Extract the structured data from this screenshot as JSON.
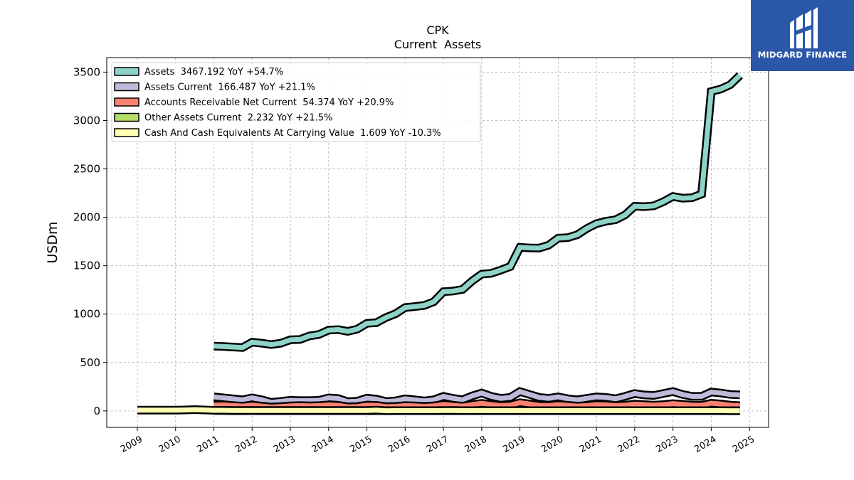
{
  "brand": {
    "name": "MIDGARD FINANCE",
    "bg": "#2a57a8"
  },
  "chart_data": {
    "type": "area",
    "title": "CPK",
    "subtitle": "Current  Assets",
    "xlabel": "",
    "ylabel": "USDm",
    "xlim": [
      2008.2,
      2025.5
    ],
    "ylim": [
      -170,
      3650
    ],
    "yticks": [
      0,
      500,
      1000,
      1500,
      2000,
      2500,
      3000,
      3500
    ],
    "xticks": [
      2009,
      2010,
      2011,
      2012,
      2013,
      2014,
      2015,
      2016,
      2017,
      2018,
      2019,
      2020,
      2021,
      2022,
      2023,
      2024,
      2025
    ],
    "grid": true,
    "legend_position": "top-left",
    "series": [
      {
        "name": "Assets  3467.192 YoY +54.7%",
        "color": "#8dd3c7",
        "points": [
          [
            2011.0,
            670
          ],
          [
            2011.25,
            665
          ],
          [
            2011.5,
            660
          ],
          [
            2011.75,
            655
          ],
          [
            2012.0,
            710
          ],
          [
            2012.25,
            700
          ],
          [
            2012.5,
            685
          ],
          [
            2012.75,
            700
          ],
          [
            2013.0,
            735
          ],
          [
            2013.25,
            738
          ],
          [
            2013.5,
            775
          ],
          [
            2013.75,
            790
          ],
          [
            2014.0,
            835
          ],
          [
            2014.25,
            840
          ],
          [
            2014.5,
            822
          ],
          [
            2014.75,
            845
          ],
          [
            2015.0,
            905
          ],
          [
            2015.25,
            912
          ],
          [
            2015.5,
            965
          ],
          [
            2015.75,
            1005
          ],
          [
            2016.0,
            1068
          ],
          [
            2016.25,
            1078
          ],
          [
            2016.5,
            1090
          ],
          [
            2016.75,
            1128
          ],
          [
            2017.0,
            1232
          ],
          [
            2017.25,
            1238
          ],
          [
            2017.5,
            1255
          ],
          [
            2017.75,
            1342
          ],
          [
            2018.0,
            1413
          ],
          [
            2018.25,
            1422
          ],
          [
            2018.5,
            1455
          ],
          [
            2018.75,
            1492
          ],
          [
            2019.0,
            1690
          ],
          [
            2019.25,
            1684
          ],
          [
            2019.5,
            1682
          ],
          [
            2019.75,
            1712
          ],
          [
            2020.0,
            1785
          ],
          [
            2020.25,
            1790
          ],
          [
            2020.5,
            1820
          ],
          [
            2020.75,
            1885
          ],
          [
            2021.0,
            1935
          ],
          [
            2021.25,
            1960
          ],
          [
            2021.5,
            1975
          ],
          [
            2021.75,
            2025
          ],
          [
            2022.0,
            2115
          ],
          [
            2022.25,
            2110
          ],
          [
            2022.5,
            2118
          ],
          [
            2022.75,
            2162
          ],
          [
            2023.0,
            2215
          ],
          [
            2023.25,
            2198
          ],
          [
            2023.5,
            2203
          ],
          [
            2023.75,
            2240
          ],
          [
            2024.0,
            3300
          ],
          [
            2024.25,
            3325
          ],
          [
            2024.5,
            3370
          ],
          [
            2024.75,
            3467
          ]
        ]
      },
      {
        "name": "Assets Current  166.487 YoY +21.1%",
        "color": "#bebada",
        "points": [
          [
            2011.0,
            145
          ],
          [
            2011.25,
            135
          ],
          [
            2011.5,
            125
          ],
          [
            2011.75,
            115
          ],
          [
            2012.0,
            135
          ],
          [
            2012.25,
            115
          ],
          [
            2012.5,
            88
          ],
          [
            2012.75,
            98
          ],
          [
            2013.0,
            110
          ],
          [
            2013.25,
            106
          ],
          [
            2013.5,
            106
          ],
          [
            2013.75,
            110
          ],
          [
            2014.0,
            135
          ],
          [
            2014.25,
            128
          ],
          [
            2014.5,
            95
          ],
          [
            2014.75,
            100
          ],
          [
            2015.0,
            132
          ],
          [
            2015.25,
            122
          ],
          [
            2015.5,
            97
          ],
          [
            2015.75,
            104
          ],
          [
            2016.0,
            125
          ],
          [
            2016.25,
            115
          ],
          [
            2016.5,
            103
          ],
          [
            2016.75,
            115
          ],
          [
            2017.0,
            150
          ],
          [
            2017.25,
            130
          ],
          [
            2017.5,
            115
          ],
          [
            2017.75,
            155
          ],
          [
            2018.0,
            185
          ],
          [
            2018.25,
            150
          ],
          [
            2018.5,
            130
          ],
          [
            2018.75,
            140
          ],
          [
            2019.0,
            200
          ],
          [
            2019.25,
            170
          ],
          [
            2019.5,
            140
          ],
          [
            2019.75,
            130
          ],
          [
            2020.0,
            145
          ],
          [
            2020.25,
            125
          ],
          [
            2020.5,
            115
          ],
          [
            2020.75,
            130
          ],
          [
            2021.0,
            145
          ],
          [
            2021.25,
            140
          ],
          [
            2021.5,
            125
          ],
          [
            2021.75,
            150
          ],
          [
            2022.0,
            180
          ],
          [
            2022.25,
            165
          ],
          [
            2022.5,
            160
          ],
          [
            2022.75,
            180
          ],
          [
            2023.0,
            200
          ],
          [
            2023.25,
            170
          ],
          [
            2023.5,
            150
          ],
          [
            2023.75,
            150
          ],
          [
            2024.0,
            195
          ],
          [
            2024.25,
            185
          ],
          [
            2024.5,
            170
          ],
          [
            2024.75,
            166
          ]
        ]
      },
      {
        "name": "Accounts Receivable Net Current  54.374 YoY +20.9%",
        "color": "#fb8072",
        "points": [
          [
            2011.0,
            60
          ],
          [
            2011.25,
            62
          ],
          [
            2011.5,
            55
          ],
          [
            2011.75,
            50
          ],
          [
            2012.0,
            60
          ],
          [
            2012.25,
            50
          ],
          [
            2012.5,
            40
          ],
          [
            2012.75,
            45
          ],
          [
            2013.0,
            52
          ],
          [
            2013.25,
            55
          ],
          [
            2013.5,
            52
          ],
          [
            2013.75,
            55
          ],
          [
            2014.0,
            62
          ],
          [
            2014.25,
            58
          ],
          [
            2014.5,
            42
          ],
          [
            2014.75,
            45
          ],
          [
            2015.0,
            60
          ],
          [
            2015.25,
            58
          ],
          [
            2015.5,
            44
          ],
          [
            2015.75,
            47
          ],
          [
            2016.0,
            55
          ],
          [
            2016.25,
            52
          ],
          [
            2016.5,
            47
          ],
          [
            2016.75,
            52
          ],
          [
            2017.0,
            68
          ],
          [
            2017.25,
            58
          ],
          [
            2017.5,
            50
          ],
          [
            2017.75,
            65
          ],
          [
            2018.0,
            78
          ],
          [
            2018.25,
            65
          ],
          [
            2018.5,
            55
          ],
          [
            2018.75,
            60
          ],
          [
            2019.0,
            85
          ],
          [
            2019.25,
            72
          ],
          [
            2019.5,
            58
          ],
          [
            2019.75,
            55
          ],
          [
            2020.0,
            65
          ],
          [
            2020.25,
            58
          ],
          [
            2020.5,
            50
          ],
          [
            2020.75,
            55
          ],
          [
            2021.0,
            65
          ],
          [
            2021.25,
            62
          ],
          [
            2021.5,
            55
          ],
          [
            2021.75,
            60
          ],
          [
            2022.0,
            70
          ],
          [
            2022.25,
            65
          ],
          [
            2022.5,
            60
          ],
          [
            2022.75,
            65
          ],
          [
            2023.0,
            75
          ],
          [
            2023.25,
            68
          ],
          [
            2023.5,
            60
          ],
          [
            2023.75,
            58
          ],
          [
            2024.0,
            80
          ],
          [
            2024.25,
            72
          ],
          [
            2024.5,
            60
          ],
          [
            2024.75,
            54
          ]
        ]
      },
      {
        "name": "Other Assets Current  2.232 YoY +21.5%",
        "color": "#b3de69",
        "points": [
          [
            2011.0,
            4
          ],
          [
            2011.25,
            4
          ],
          [
            2011.5,
            3
          ],
          [
            2011.75,
            3
          ],
          [
            2012.0,
            4
          ],
          [
            2012.25,
            3
          ],
          [
            2012.5,
            3
          ],
          [
            2012.75,
            3
          ],
          [
            2013.0,
            3
          ],
          [
            2013.25,
            3
          ],
          [
            2013.5,
            3
          ],
          [
            2013.75,
            3
          ],
          [
            2014.0,
            3
          ],
          [
            2014.25,
            3
          ],
          [
            2014.5,
            3
          ],
          [
            2014.75,
            3
          ],
          [
            2015.0,
            3
          ],
          [
            2015.25,
            3
          ],
          [
            2015.5,
            3
          ],
          [
            2015.75,
            3
          ],
          [
            2016.0,
            3
          ],
          [
            2016.25,
            3
          ],
          [
            2016.5,
            3
          ],
          [
            2016.75,
            3
          ],
          [
            2017.0,
            3
          ],
          [
            2017.25,
            3
          ],
          [
            2017.5,
            3
          ],
          [
            2017.75,
            3
          ],
          [
            2018.0,
            3
          ],
          [
            2018.25,
            3
          ],
          [
            2018.5,
            3
          ],
          [
            2018.75,
            3
          ],
          [
            2019.0,
            3
          ],
          [
            2019.25,
            3
          ],
          [
            2019.5,
            3
          ],
          [
            2019.75,
            3
          ],
          [
            2020.0,
            3
          ],
          [
            2020.25,
            3
          ],
          [
            2020.5,
            3
          ],
          [
            2020.75,
            3
          ],
          [
            2021.0,
            3
          ],
          [
            2021.25,
            3
          ],
          [
            2021.5,
            3
          ],
          [
            2021.75,
            3
          ],
          [
            2022.0,
            3
          ],
          [
            2022.25,
            3
          ],
          [
            2022.5,
            3
          ],
          [
            2022.75,
            3
          ],
          [
            2023.0,
            3
          ],
          [
            2023.25,
            3
          ],
          [
            2023.5,
            3
          ],
          [
            2023.75,
            3
          ],
          [
            2024.0,
            3
          ],
          [
            2024.25,
            3
          ],
          [
            2024.5,
            2.5
          ],
          [
            2024.75,
            2.2
          ]
        ]
      },
      {
        "name": "Cash And Cash Equivalents At Carrying Value  1.609 YoY -10.3%",
        "color": "#ffffb3",
        "points": [
          [
            2009.0,
            8
          ],
          [
            2009.25,
            8
          ],
          [
            2009.5,
            8
          ],
          [
            2009.75,
            8
          ],
          [
            2010.0,
            8
          ],
          [
            2010.25,
            10
          ],
          [
            2010.5,
            14
          ],
          [
            2010.75,
            10
          ],
          [
            2011.0,
            6
          ],
          [
            2011.25,
            6
          ],
          [
            2011.5,
            5
          ],
          [
            2011.75,
            5
          ],
          [
            2012.0,
            5
          ],
          [
            2012.25,
            5
          ],
          [
            2012.5,
            5
          ],
          [
            2012.75,
            5
          ],
          [
            2013.0,
            5
          ],
          [
            2013.25,
            5
          ],
          [
            2013.5,
            5
          ],
          [
            2013.75,
            5
          ],
          [
            2014.0,
            5
          ],
          [
            2014.25,
            5
          ],
          [
            2014.5,
            5
          ],
          [
            2014.75,
            5
          ],
          [
            2015.0,
            5
          ],
          [
            2015.25,
            8
          ],
          [
            2015.5,
            2
          ],
          [
            2015.75,
            3
          ],
          [
            2016.0,
            3
          ],
          [
            2016.25,
            3
          ],
          [
            2016.5,
            3
          ],
          [
            2016.75,
            3
          ],
          [
            2017.0,
            4
          ],
          [
            2017.25,
            4
          ],
          [
            2017.5,
            3
          ],
          [
            2017.75,
            3
          ],
          [
            2018.0,
            4
          ],
          [
            2018.25,
            3
          ],
          [
            2018.5,
            3
          ],
          [
            2018.75,
            3
          ],
          [
            2019.0,
            4
          ],
          [
            2019.25,
            3
          ],
          [
            2019.5,
            3
          ],
          [
            2019.75,
            3
          ],
          [
            2020.0,
            3
          ],
          [
            2020.25,
            3
          ],
          [
            2020.5,
            3
          ],
          [
            2020.75,
            3
          ],
          [
            2021.0,
            3
          ],
          [
            2021.25,
            3
          ],
          [
            2021.5,
            3
          ],
          [
            2021.75,
            3
          ],
          [
            2022.0,
            3
          ],
          [
            2022.25,
            3
          ],
          [
            2022.5,
            3
          ],
          [
            2022.75,
            3
          ],
          [
            2023.0,
            3
          ],
          [
            2023.25,
            3
          ],
          [
            2023.5,
            3
          ],
          [
            2023.75,
            3
          ],
          [
            2024.0,
            3
          ],
          [
            2024.25,
            3
          ],
          [
            2024.5,
            2
          ],
          [
            2024.75,
            1.6
          ]
        ]
      }
    ]
  }
}
